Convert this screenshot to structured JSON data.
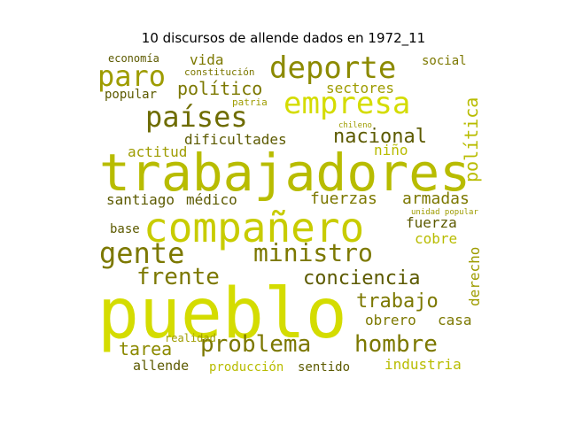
{
  "title": "10 discursos de allende dados en 1972_11",
  "palette": {
    "bright": "#d4dc00",
    "mid": "#b8bc00",
    "dark": "#7c7800",
    "olive": "#5c5a00"
  },
  "words": [
    "pueblo",
    "trabajadores",
    "compañero",
    "deporte",
    "empresa",
    "países",
    "paro",
    "gente",
    "ministro",
    "nacional",
    "frente",
    "conciencia",
    "problema",
    "hombre",
    "trabajo",
    "tarea",
    "fuerzas",
    "armadas",
    "santiago",
    "médico",
    "político",
    "sectores",
    "dificultades",
    "actitud",
    "niño",
    "fuerza",
    "cobre",
    "obrero",
    "casa",
    "industria",
    "allende",
    "producción",
    "sentido",
    "realidad",
    "base",
    "popular",
    "economía",
    "vida",
    "social",
    "constitución",
    "patria",
    "política",
    "derecho",
    "unidad popular",
    "chileno"
  ]
}
